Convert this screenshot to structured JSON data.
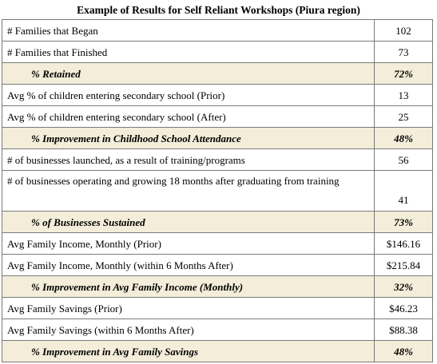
{
  "title": "Example of Results for Self Reliant Workshops (Piura region)",
  "rows": [
    {
      "label": "# Families that Began",
      "value": "102"
    },
    {
      "label": "# Families that Finished",
      "value": "73"
    },
    {
      "label": "% Retained",
      "value": "72%"
    },
    {
      "label": "Avg % of children entering secondary school (Prior)",
      "value": "13"
    },
    {
      "label": "Avg % of children entering secondary school (After)",
      "value": "25"
    },
    {
      "label": "% Improvement in Childhood School Attendance",
      "value": "48%"
    },
    {
      "label": "# of businesses launched, as a result of training/programs",
      "value": "56"
    },
    {
      "label": "# of businesses operating and growing 18 months after graduating from training",
      "value": "41"
    },
    {
      "label": "% of Businesses Sustained",
      "value": "73%"
    },
    {
      "label": "Avg Family Income, Monthly (Prior)",
      "value": "$146.16"
    },
    {
      "label": "Avg Family Income, Monthly (within 6 Months After)",
      "value": "$215.84"
    },
    {
      "label": "% Improvement in Avg Family Income (Monthly)",
      "value": "32%"
    },
    {
      "label": "Avg Family Savings (Prior)",
      "value": "$46.23"
    },
    {
      "label": "Avg Family Savings (within 6 Months After)",
      "value": "$88.38"
    },
    {
      "label": "% Improvement in Avg Family Savings",
      "value": "48%"
    }
  ],
  "colors": {
    "summary_row_background": "#f3edd9",
    "border": "#7a7a7a"
  }
}
